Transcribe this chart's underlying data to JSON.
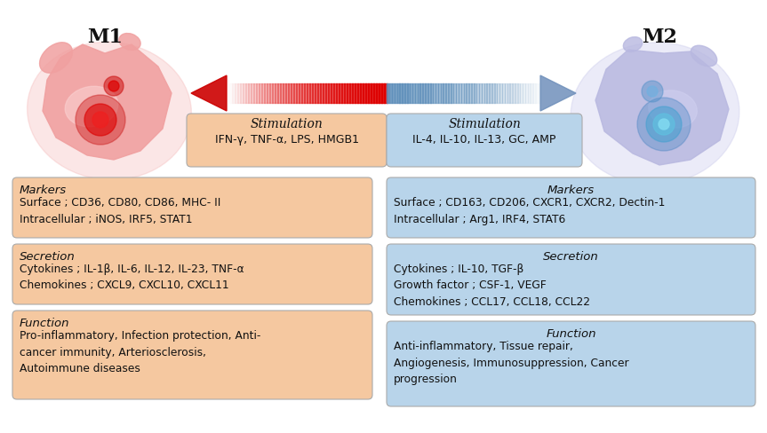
{
  "bg_color": "#ffffff",
  "m1_label": "M1",
  "m2_label": "M2",
  "stim_left_bg": "#f5c8a0",
  "stim_right_bg": "#b8d4ea",
  "stim_left_title": "Stimulation",
  "stim_left_text": "IFN-γ, TNF-α, LPS, HMGB1",
  "stim_right_title": "Stimulation",
  "stim_right_text": "IL-4, IL-10, IL-13, GC, AMP",
  "left_box_bg": "#f5c8a0",
  "right_box_bg": "#b8d4ea",
  "box1_left_title": "Markers",
  "box1_left_text": "Surface ; CD36, CD80, CD86, MHC- II\nIntracellular ; iNOS, IRF5, STAT1",
  "box2_left_title": "Secretion",
  "box2_left_text": "Cytokines ; IL-1β, IL-6, IL-12, IL-23, TNF-α\nChemokines ; CXCL9, CXCL10, CXCL11",
  "box3_left_title": "Function",
  "box3_left_text": "Pro-inflammatory, Infection protection, Anti-\ncancer immunity, Arteriosclerosis,\nAutoimmune diseases",
  "box1_right_title": "Markers",
  "box1_right_text": "Surface ; CD163, CD206, CXCR1, CXCR2, Dectin-1\nIntracellular ; Arg1, IRF4, STAT6",
  "box2_right_title": "Secretion",
  "box2_right_text": "Cytokines ; IL-10, TGF-β\nGrowth factor ; CSF-1, VEGF\nChemokines ; CCL17, CCL18, CCL22",
  "box3_right_title": "Function",
  "box3_right_text": "Anti-inflammatory, Tissue repair,\nAngiogenesis, Immunosuppression, Cancer\nprogression",
  "arrow_left_color": "#cc0000",
  "arrow_right_color": "#7aa8cc",
  "text_color": "#111111",
  "edge_color": "#aaaaaa"
}
